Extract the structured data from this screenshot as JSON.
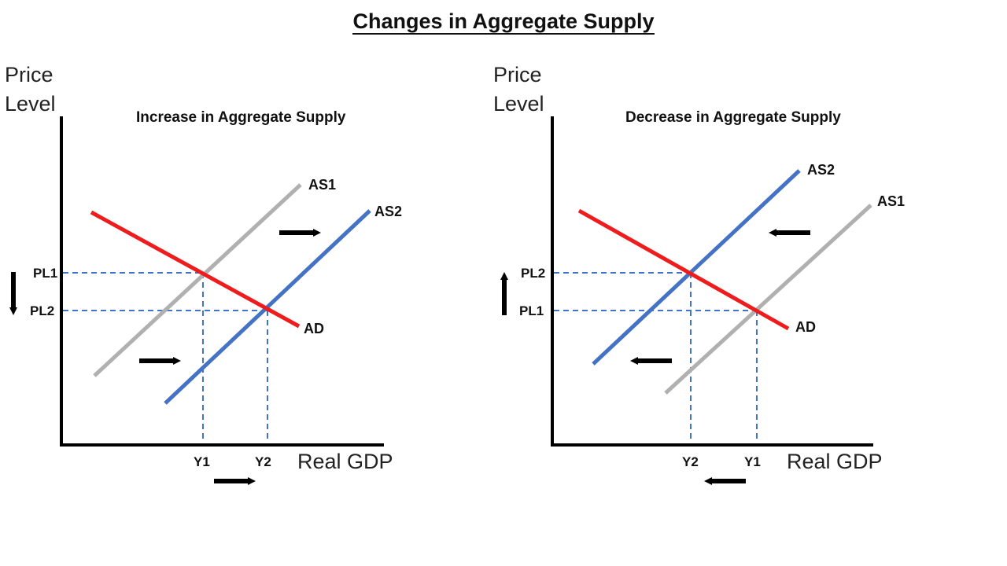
{
  "page_title": "Changes in Aggregate Supply",
  "colors": {
    "ad": "#ee1c1c",
    "as_initial": "#b0b0b0",
    "as_new": "#4472c4",
    "guide": "#4472c4",
    "axis": "#000000"
  },
  "left_panel": {
    "title": "Increase in Aggregate Supply",
    "y_axis_label_line1": "Price",
    "y_axis_label_line2": "Level",
    "x_axis_label": "Real GDP",
    "curves": {
      "ad": "AD",
      "as1": "AS1",
      "as2": "AS2"
    },
    "price_levels": {
      "first": "PL1",
      "second": "PL2"
    },
    "outputs": {
      "first": "Y1",
      "second": "Y2"
    },
    "shift_direction": "right"
  },
  "right_panel": {
    "title": "Decrease in Aggregate Supply",
    "y_axis_label_line1": "Price",
    "y_axis_label_line2": "Level",
    "x_axis_label": "Real GDP",
    "curves": {
      "ad": "AD",
      "as1": "AS1",
      "as2": "AS2"
    },
    "price_levels": {
      "upper": "PL2",
      "lower": "PL1"
    },
    "outputs": {
      "first": "Y2",
      "second": "Y1"
    },
    "shift_direction": "left"
  }
}
